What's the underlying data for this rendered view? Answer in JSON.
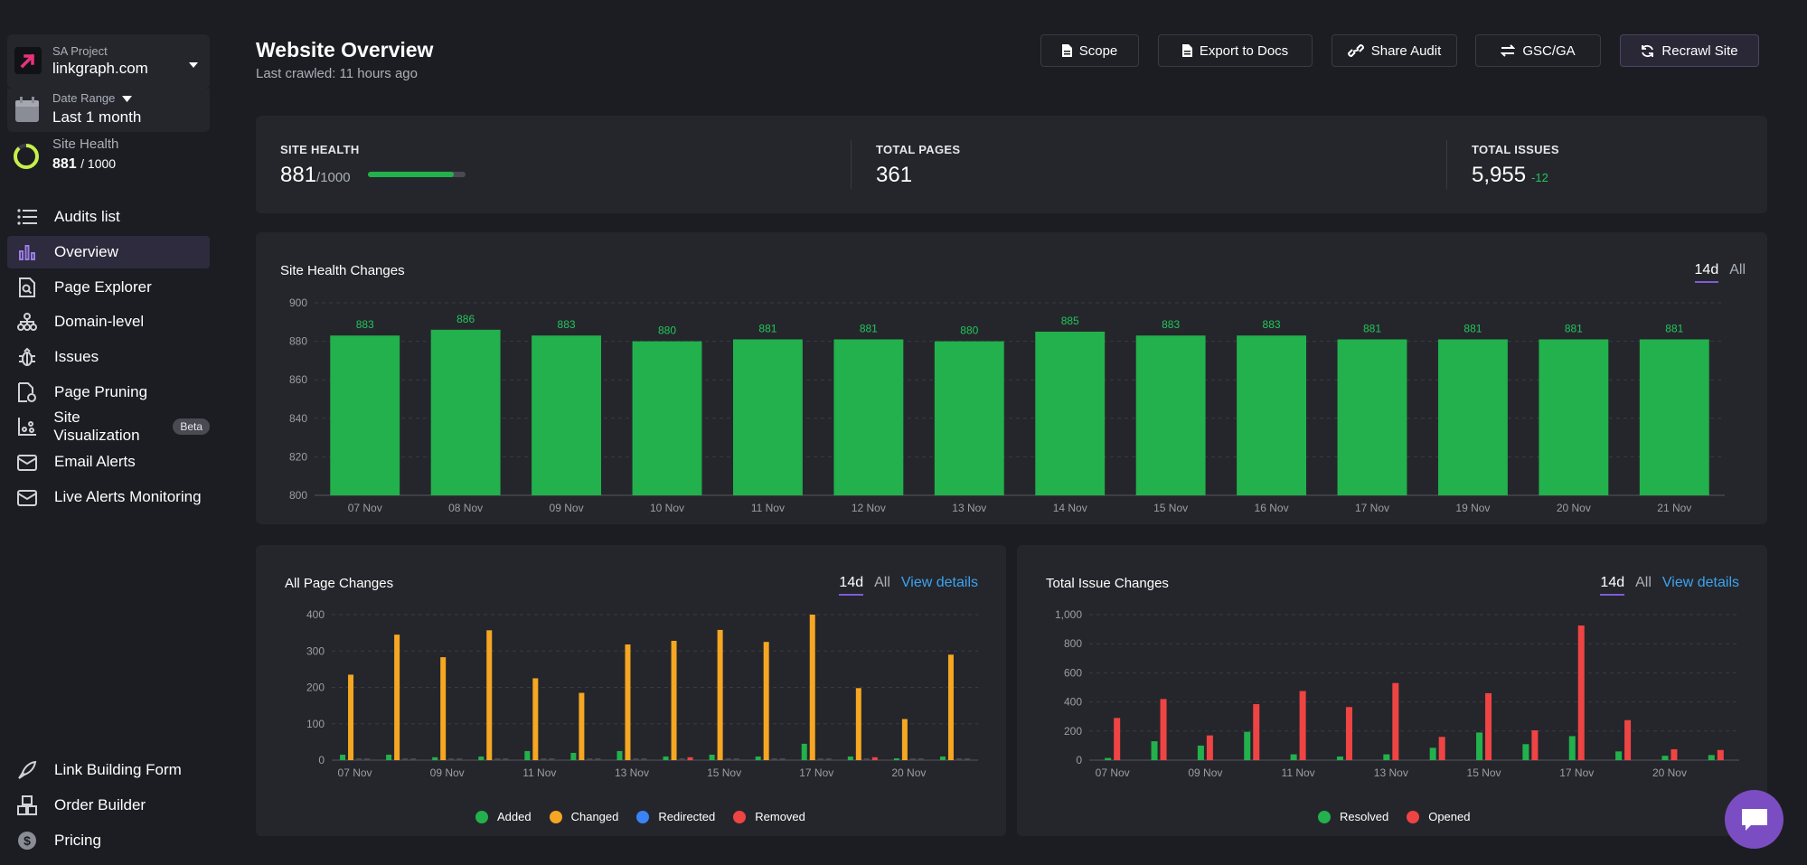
{
  "sidebar": {
    "project_label": "SA Project",
    "project_name": "linkgraph.com",
    "date_label": "Date Range",
    "date_value": "Last 1 month",
    "health_label": "Site Health",
    "health_value": "881",
    "health_max": "/ 1000",
    "health_fraction": 0.881,
    "items": [
      {
        "label": "Audits list",
        "icon": "list-icon"
      },
      {
        "label": "Overview",
        "icon": "bar-chart-icon"
      },
      {
        "label": "Page Explorer",
        "icon": "page-search-icon"
      },
      {
        "label": "Domain-level",
        "icon": "sitemap-icon"
      },
      {
        "label": "Issues",
        "icon": "bug-icon"
      },
      {
        "label": "Page Pruning",
        "icon": "page-prune-icon"
      },
      {
        "label": "Site Visualization",
        "icon": "scatter-icon",
        "badge": "Beta"
      },
      {
        "label": "Email Alerts",
        "icon": "mail-icon"
      },
      {
        "label": "Live Alerts Monitoring",
        "icon": "mail-icon"
      }
    ],
    "bottom_items": [
      {
        "label": "Link Building Form",
        "icon": "rocket-icon"
      },
      {
        "label": "Order Builder",
        "icon": "boxes-icon"
      },
      {
        "label": "Pricing",
        "icon": "dollar-icon"
      }
    ]
  },
  "header": {
    "title": "Website Overview",
    "subtitle": "Last crawled: 11 hours ago",
    "buttons": {
      "scope": "Scope",
      "export": "Export to Docs",
      "share": "Share Audit",
      "gsc": "GSC/GA",
      "recrawl": "Recrawl Site"
    }
  },
  "stats": {
    "site_health_label": "SITE HEALTH",
    "site_health_value": "881",
    "site_health_max": "/1000",
    "site_health_fraction": 0.881,
    "total_pages_label": "TOTAL PAGES",
    "total_pages_value": "361",
    "total_issues_label": "TOTAL ISSUES",
    "total_issues_value": "5,955",
    "total_issues_delta": "-12"
  },
  "tabs": {
    "d14": "14d",
    "all": "All",
    "view_details": "View details"
  },
  "chart_data": [
    {
      "type": "bar",
      "title": "Site Health Changes",
      "categories": [
        "07 Nov",
        "08 Nov",
        "09 Nov",
        "10 Nov",
        "11 Nov",
        "12 Nov",
        "13 Nov",
        "14 Nov",
        "15 Nov",
        "16 Nov",
        "17 Nov",
        "19 Nov",
        "20 Nov",
        "21 Nov"
      ],
      "values": [
        883,
        886,
        883,
        880,
        881,
        881,
        880,
        885,
        883,
        883,
        881,
        881,
        881,
        881
      ],
      "ylim": [
        800,
        900
      ],
      "yticks": [
        800,
        820,
        840,
        860,
        880,
        900
      ],
      "color": "#22b14c"
    },
    {
      "type": "bar",
      "title": "All Page Changes",
      "categories": [
        "07 Nov",
        "08 Nov",
        "09 Nov",
        "10 Nov",
        "11 Nov",
        "12 Nov",
        "13 Nov",
        "14 Nov",
        "15 Nov",
        "16 Nov",
        "17 Nov",
        "19 Nov",
        "20 Nov",
        "21 Nov"
      ],
      "xtick_labels": [
        "07 Nov",
        "",
        "09 Nov",
        "",
        "11 Nov",
        "",
        "13 Nov",
        "",
        "15 Nov",
        "",
        "17 Nov",
        "",
        "20 Nov",
        ""
      ],
      "series": [
        {
          "name": "Added",
          "color": "#22b14c",
          "values": [
            15,
            15,
            8,
            10,
            25,
            20,
            25,
            10,
            15,
            10,
            45,
            10,
            5,
            10
          ]
        },
        {
          "name": "Changed",
          "color": "#f5a623",
          "values": [
            235,
            345,
            283,
            357,
            225,
            185,
            318,
            328,
            358,
            325,
            400,
            198,
            113,
            290
          ]
        },
        {
          "name": "Redirected",
          "color": "#3b82f6",
          "values": [
            0,
            0,
            0,
            0,
            0,
            0,
            0,
            0,
            0,
            0,
            0,
            0,
            0,
            0
          ]
        },
        {
          "name": "Removed",
          "color": "#ef4444",
          "values": [
            0,
            0,
            0,
            0,
            0,
            0,
            0,
            8,
            0,
            0,
            0,
            8,
            0,
            0
          ]
        }
      ],
      "ylim": [
        0,
        400
      ],
      "yticks": [
        0,
        100,
        200,
        300,
        400
      ]
    },
    {
      "type": "bar",
      "title": "Total Issue Changes",
      "categories": [
        "07 Nov",
        "08 Nov",
        "09 Nov",
        "10 Nov",
        "11 Nov",
        "12 Nov",
        "13 Nov",
        "14 Nov",
        "15 Nov",
        "16 Nov",
        "17 Nov",
        "19 Nov",
        "20 Nov",
        "21 Nov"
      ],
      "xtick_labels": [
        "07 Nov",
        "",
        "09 Nov",
        "",
        "11 Nov",
        "",
        "13 Nov",
        "",
        "15 Nov",
        "",
        "17 Nov",
        "",
        "20 Nov",
        ""
      ],
      "series": [
        {
          "name": "Resolved",
          "color": "#22b14c",
          "values": [
            15,
            130,
            100,
            195,
            40,
            25,
            40,
            85,
            190,
            110,
            165,
            60,
            30,
            35
          ]
        },
        {
          "name": "Opened",
          "color": "#ef4444",
          "values": [
            290,
            420,
            170,
            385,
            475,
            365,
            530,
            160,
            460,
            205,
            925,
            275,
            75,
            70
          ]
        }
      ],
      "ylim": [
        0,
        1000
      ],
      "yticks": [
        0,
        200,
        400,
        600,
        800,
        1000
      ],
      "ytick_labels": [
        "0",
        "200",
        "400",
        "600",
        "800",
        "1,000"
      ]
    }
  ],
  "legends": {
    "pages": [
      "Added",
      "Changed",
      "Redirected",
      "Removed"
    ],
    "issues": [
      "Resolved",
      "Opened"
    ]
  },
  "colors": {
    "accent": "#7c5cd6",
    "green": "#22b14c",
    "orange": "#f5a623",
    "blue": "#3b82f6",
    "red": "#ef4444",
    "link": "#3ba4f0"
  }
}
